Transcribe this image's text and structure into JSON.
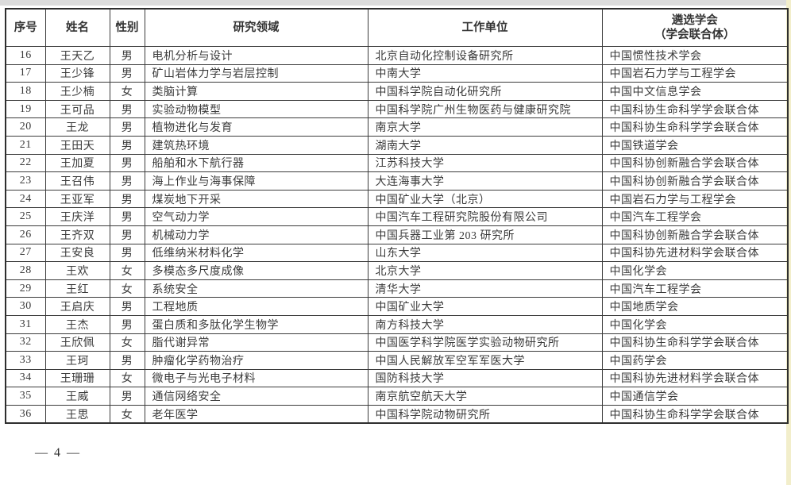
{
  "colors": {
    "table_border": "#3c3c3c",
    "text": "#3b3b3b",
    "top_band": "#dcdcdc",
    "right_edge_strip": "#f2eecb"
  },
  "footer": {
    "page_label": "— 4 —"
  },
  "table": {
    "headers": [
      "序号",
      "姓名",
      "性别",
      "研究领域",
      "工作单位",
      "遴选学会\n（学会联合体）"
    ],
    "rows": [
      {
        "no": "16",
        "name": "王天乙",
        "gender": "男",
        "field": "电机分析与设计",
        "unit": "北京自动化控制设备研究所",
        "society": "中国惯性技术学会"
      },
      {
        "no": "17",
        "name": "王少锋",
        "gender": "男",
        "field": "矿山岩体力学与岩层控制",
        "unit": "中南大学",
        "society": "中国岩石力学与工程学会"
      },
      {
        "no": "18",
        "name": "王少楠",
        "gender": "女",
        "field": "类脑计算",
        "unit": "中国科学院自动化研究所",
        "society": "中国中文信息学会"
      },
      {
        "no": "19",
        "name": "王可品",
        "gender": "男",
        "field": "实验动物模型",
        "unit": "中国科学院广州生物医药与健康研究院",
        "society": "中国科协生命科学学会联合体"
      },
      {
        "no": "20",
        "name": "王龙",
        "gender": "男",
        "field": "植物进化与发育",
        "unit": "南京大学",
        "society": "中国科协生命科学学会联合体"
      },
      {
        "no": "21",
        "name": "王田天",
        "gender": "男",
        "field": "建筑热环境",
        "unit": "湖南大学",
        "society": "中国铁道学会"
      },
      {
        "no": "22",
        "name": "王加夏",
        "gender": "男",
        "field": "船舶和水下航行器",
        "unit": "江苏科技大学",
        "society": "中国科协创新融合学会联合体"
      },
      {
        "no": "23",
        "name": "王召伟",
        "gender": "男",
        "field": "海上作业与海事保障",
        "unit": "大连海事大学",
        "society": "中国科协创新融合学会联合体"
      },
      {
        "no": "24",
        "name": "王亚军",
        "gender": "男",
        "field": "煤炭地下开采",
        "unit": "中国矿业大学（北京）",
        "society": "中国岩石力学与工程学会"
      },
      {
        "no": "25",
        "name": "王庆洋",
        "gender": "男",
        "field": "空气动力学",
        "unit": "中国汽车工程研究院股份有限公司",
        "society": "中国汽车工程学会"
      },
      {
        "no": "26",
        "name": "王齐双",
        "gender": "男",
        "field": "机械动力学",
        "unit": "中国兵器工业第 203 研究所",
        "society": "中国科协创新融合学会联合体"
      },
      {
        "no": "27",
        "name": "王安良",
        "gender": "男",
        "field": "低维纳米材料化学",
        "unit": "山东大学",
        "society": "中国科协先进材料学会联合体"
      },
      {
        "no": "28",
        "name": "王欢",
        "gender": "女",
        "field": "多模态多尺度成像",
        "unit": "北京大学",
        "society": "中国化学会"
      },
      {
        "no": "29",
        "name": "王红",
        "gender": "女",
        "field": "系统安全",
        "unit": "清华大学",
        "society": "中国汽车工程学会"
      },
      {
        "no": "30",
        "name": "王启庆",
        "gender": "男",
        "field": "工程地质",
        "unit": "中国矿业大学",
        "society": "中国地质学会"
      },
      {
        "no": "31",
        "name": "王杰",
        "gender": "男",
        "field": "蛋白质和多肽化学生物学",
        "unit": "南方科技大学",
        "society": "中国化学会"
      },
      {
        "no": "32",
        "name": "王欣佩",
        "gender": "女",
        "field": "脂代谢异常",
        "unit": "中国医学科学院医学实验动物研究所",
        "society": "中国科协生命科学学会联合体"
      },
      {
        "no": "33",
        "name": "王珂",
        "gender": "男",
        "field": "肿瘤化学药物治疗",
        "unit": "中国人民解放军空军军医大学",
        "society": "中国药学会"
      },
      {
        "no": "34",
        "name": "王珊珊",
        "gender": "女",
        "field": "微电子与光电子材料",
        "unit": "国防科技大学",
        "society": "中国科协先进材料学会联合体"
      },
      {
        "no": "35",
        "name": "王威",
        "gender": "男",
        "field": "通信网络安全",
        "unit": "南京航空航天大学",
        "society": "中国通信学会"
      },
      {
        "no": "36",
        "name": "王思",
        "gender": "女",
        "field": "老年医学",
        "unit": "中国科学院动物研究所",
        "society": "中国科协生命科学学会联合体"
      }
    ]
  }
}
